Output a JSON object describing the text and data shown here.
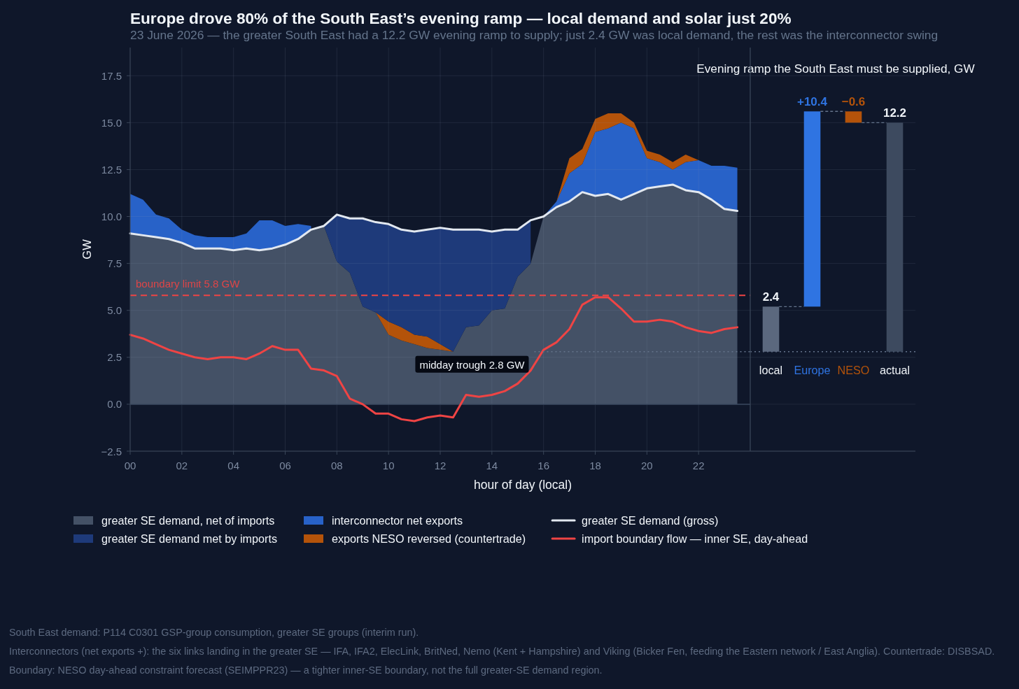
{
  "chart_data": [
    {
      "type": "area",
      "title": "Europe drove 80% of the South East’s evening ramp — local demand and solar just 20%",
      "subtitle": "23 June 2026 — the greater South East had a 12.2 GW evening ramp to supply; just 2.4 GW was local demand, the rest was the interconnector swing",
      "xlabel": "hour of day (local)",
      "ylabel": "GW",
      "x": [
        0,
        0.5,
        1,
        1.5,
        2,
        2.5,
        3,
        3.5,
        4,
        4.5,
        5,
        5.5,
        6,
        6.5,
        7,
        7.5,
        8,
        8.5,
        9,
        9.5,
        10,
        10.5,
        11,
        11.5,
        12,
        12.5,
        13,
        13.5,
        14,
        14.5,
        15,
        15.5,
        16,
        16.5,
        17,
        17.5,
        18,
        18.5,
        19,
        19.5,
        20,
        20.5,
        21,
        21.5,
        22,
        22.5,
        23,
        23.5
      ],
      "stacked": true,
      "series": [
        {
          "name": "greater SE demand, net of imports",
          "type": "area",
          "color": "#445166",
          "values": [
            9.1,
            9.0,
            8.9,
            8.8,
            8.6,
            8.3,
            8.3,
            8.3,
            8.2,
            8.3,
            8.2,
            8.3,
            8.5,
            8.8,
            9.3,
            9.5,
            7.6,
            7.0,
            5.2,
            4.9,
            3.7,
            3.4,
            3.2,
            3.0,
            2.9,
            2.8,
            4.1,
            4.2,
            5.0,
            5.1,
            6.8,
            7.5,
            10.0,
            10.5,
            10.8,
            11.3,
            11.1,
            11.2,
            10.9,
            11.2,
            11.5,
            11.6,
            11.7,
            11.4,
            11.3,
            10.9,
            10.4,
            10.3
          ]
        },
        {
          "type": "area",
          "color": "#b4530a",
          "values": [
            null,
            null,
            null,
            null,
            null,
            null,
            null,
            null,
            null,
            null,
            null,
            null,
            null,
            null,
            null,
            null,
            null,
            null,
            null,
            0,
            0.7,
            0.7,
            0.5,
            0.6,
            0.3,
            0,
            null,
            null,
            null,
            null,
            null,
            null,
            null,
            null,
            null,
            null,
            null,
            null,
            null,
            null,
            null,
            null,
            null,
            null,
            null,
            null,
            null,
            null
          ]
        },
        {
          "name": "greater SE demand met by imports",
          "type": "area",
          "color": "#1e3a7a",
          "values": [
            null,
            null,
            null,
            null,
            null,
            null,
            null,
            null,
            null,
            null,
            null,
            null,
            null,
            null,
            null,
            0,
            2.5,
            2.9,
            4.7,
            4.8,
            5.2,
            5.2,
            5.5,
            5.7,
            6.2,
            6.5,
            5.2,
            5.1,
            4.2,
            4.2,
            2.5,
            2.3,
            null,
            null,
            null,
            null,
            null,
            null,
            null,
            null,
            null,
            null,
            null,
            null,
            null,
            null,
            null,
            null
          ]
        },
        {
          "name": "interconnector net exports",
          "type": "area",
          "color": "#2862c8",
          "values": [
            2.1,
            1.9,
            1.2,
            1.1,
            0.7,
            0.7,
            0.6,
            0.6,
            0.7,
            0.8,
            1.6,
            1.5,
            1.0,
            0.8,
            0.2,
            null,
            null,
            null,
            null,
            null,
            null,
            null,
            null,
            null,
            null,
            null,
            null,
            null,
            null,
            null,
            null,
            null,
            0,
            0.3,
            1.5,
            1.5,
            3.4,
            3.5,
            4.1,
            3.5,
            1.6,
            1.3,
            0.8,
            1.5,
            1.7,
            1.8,
            2.3,
            2.3
          ]
        },
        {
          "name": "exports NESO reversed (countertrade)",
          "type": "area",
          "color": "#b4530a",
          "values": [
            null,
            null,
            null,
            null,
            null,
            null,
            null,
            null,
            null,
            null,
            null,
            null,
            null,
            null,
            null,
            null,
            null,
            null,
            null,
            null,
            null,
            null,
            null,
            null,
            null,
            null,
            null,
            null,
            null,
            null,
            null,
            null,
            null,
            0,
            0.8,
            0.8,
            0.7,
            0.8,
            0.5,
            0.3,
            0.4,
            0.4,
            0.4,
            0.4,
            0,
            null,
            null,
            null
          ]
        },
        {
          "name": "greater SE demand (gross)",
          "type": "line",
          "color": "#e2e8f0",
          "values": [
            9.1,
            9.0,
            8.9,
            8.8,
            8.6,
            8.3,
            8.3,
            8.3,
            8.2,
            8.3,
            8.2,
            8.3,
            8.5,
            8.8,
            9.3,
            9.5,
            10.1,
            9.9,
            9.9,
            9.7,
            9.6,
            9.3,
            9.2,
            9.3,
            9.4,
            9.3,
            9.3,
            9.3,
            9.2,
            9.3,
            9.3,
            9.8,
            10.0,
            10.5,
            10.8,
            11.3,
            11.1,
            11.2,
            10.9,
            11.2,
            11.5,
            11.6,
            11.7,
            11.4,
            11.3,
            10.9,
            10.4,
            10.3
          ]
        },
        {
          "name": "import boundary flow — inner SE, day-ahead",
          "type": "line",
          "color": "#ef4444",
          "values": [
            3.7,
            3.5,
            3.2,
            2.9,
            2.7,
            2.5,
            2.4,
            2.5,
            2.5,
            2.4,
            2.7,
            3.1,
            2.9,
            2.9,
            1.9,
            1.8,
            1.5,
            0.3,
            0.0,
            -0.5,
            -0.5,
            -0.8,
            -0.9,
            -0.7,
            -0.6,
            -0.7,
            0.5,
            0.4,
            0.5,
            0.7,
            1.1,
            1.8,
            2.9,
            3.3,
            4.0,
            5.3,
            5.7,
            5.7,
            5.1,
            4.4,
            4.4,
            4.5,
            4.4,
            4.1,
            3.9,
            3.8,
            4.0,
            4.1
          ]
        }
      ],
      "xlim": [
        0,
        24
      ],
      "xticks": [
        {
          "value": 0,
          "label": "00"
        },
        {
          "value": 2,
          "label": "02"
        },
        {
          "value": 4,
          "label": "04"
        },
        {
          "value": 6,
          "label": "06"
        },
        {
          "value": 8,
          "label": "08"
        },
        {
          "value": 10,
          "label": "10"
        },
        {
          "value": 12,
          "label": "12"
        },
        {
          "value": 14,
          "label": "14"
        },
        {
          "value": 16,
          "label": "16"
        },
        {
          "value": 18,
          "label": "18"
        },
        {
          "value": 20,
          "label": "20"
        },
        {
          "value": 22,
          "label": "22"
        }
      ],
      "ylim": [
        -2.5,
        19
      ],
      "yticks": [
        {
          "value": -2.5,
          "label": "−2.5"
        },
        {
          "value": 0,
          "label": "0.0"
        },
        {
          "value": 2.5,
          "label": "2.5"
        },
        {
          "value": 5,
          "label": "5.0"
        },
        {
          "value": 7.5,
          "label": "7.5"
        },
        {
          "value": 10,
          "label": "10.0"
        },
        {
          "value": 12.5,
          "label": "12.5"
        },
        {
          "value": 15,
          "label": "15.0"
        },
        {
          "value": 17.5,
          "label": "17.5"
        }
      ],
      "grid": true,
      "legend": "bottom",
      "ref_lines": [
        {
          "axis": "y",
          "value": 5.8,
          "label": "boundary limit 5.8 GW",
          "color": "#ef4444",
          "line_style": "dashed"
        },
        {
          "axis": "y",
          "value": 0,
          "color": "#3b4a60"
        }
      ],
      "annotations": [
        {
          "text": "midday trough 2.8 GW",
          "x": 12.5,
          "y": 2.8
        },
        "South East demand: P114 C0301 GSP-group consumption, greater SE groups (interim run).",
        "Interconnectors (net exports +): the six links landing in the greater SE — IFA, IFA2, ElecLink, BritNed, Nemo (Kent + Hampshire) and Viking (Bicker Fen, feeding the Eastern network / East Anglia). Countertrade: DISBSAD.",
        "Boundary: NESO day-ahead constraint forecast (SEIMPPR23) — a tighter inner-SE boundary, not the full greater-SE demand region."
      ]
    },
    {
      "type": "bar",
      "title": "Evening ramp the South East must be supplied, GW",
      "categories": [
        "local",
        "Europe",
        "NESO",
        "actual"
      ],
      "values": [
        2.4,
        10.4,
        -0.6,
        12.2
      ],
      "base": [
        2.8,
        5.2,
        15.6,
        2.8
      ],
      "colors": [
        "#5b687e",
        "#2f74e2",
        "#b4530a",
        "#3d4a5f"
      ],
      "value_labels": [
        "2.4",
        "+10.4",
        "−0.6",
        "12.2"
      ],
      "ylim": [
        -2.5,
        19
      ],
      "yticks": [
        {
          "value": -2.5,
          "label": null
        },
        {
          "value": 0,
          "label": null
        },
        {
          "value": 2.5,
          "label": null
        },
        {
          "value": 5,
          "label": null
        },
        {
          "value": 7.5,
          "label": null
        },
        {
          "value": 10,
          "label": null
        },
        {
          "value": 12.5,
          "label": null
        },
        {
          "value": 15,
          "label": null
        },
        {
          "value": 17.5,
          "label": null
        }
      ],
      "tick_labels": "x",
      "grid": "y",
      "ref_lines": [
        {
          "axis": "y",
          "value": 2.8,
          "color": "#64748b",
          "line_style": "dotted"
        }
      ]
    }
  ]
}
